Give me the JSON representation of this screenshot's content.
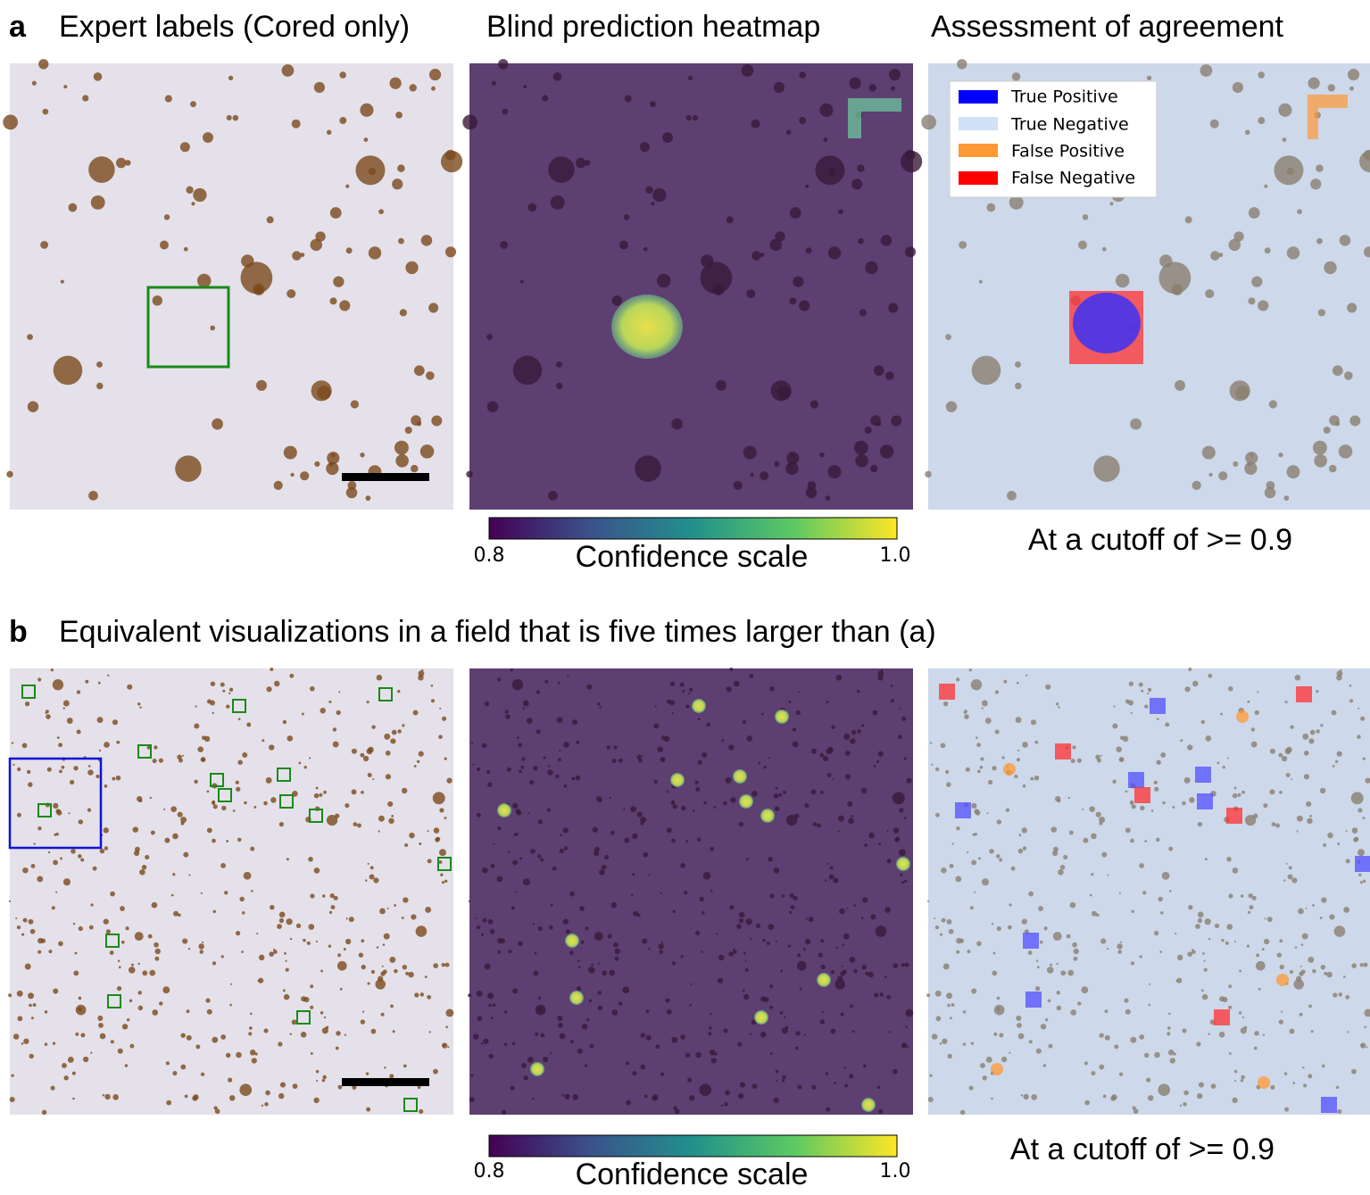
{
  "panel_a": {
    "letter": "a",
    "titles": [
      "Expert labels (Cored only)",
      "Blind prediction heatmap",
      "Assessment of agreement"
    ],
    "legend": [
      "True Positive",
      "True Negative",
      "False Positive",
      "False Negative"
    ],
    "colorbar": {
      "label": "Confidence scale",
      "min": "0.8",
      "max": "1.0"
    },
    "cutoff": "At a cutoff of >= 0.9"
  },
  "panel_b": {
    "letter": "b",
    "title": "Equivalent visualizations in a field that is five times larger than (a)",
    "colorbar": {
      "label": "Confidence scale",
      "min": "0.8",
      "max": "1.0"
    },
    "cutoff": "At a cutoff of >= 0.9"
  }
}
